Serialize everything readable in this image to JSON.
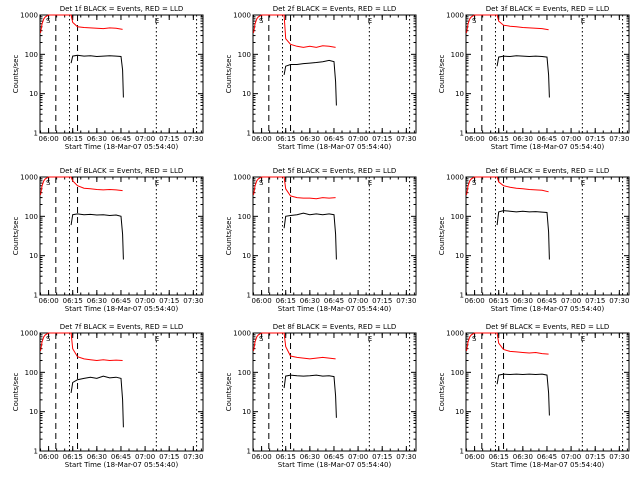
{
  "chart_data": [
    {
      "type": "line",
      "title": "Det 1f BLACK = Events, RED = LLD",
      "xlabel": "Start Time (18-Mar-07 05:54:40)",
      "ylabel": "Counts/sec",
      "x_ticks": [
        "06:00",
        "06:15",
        "06:30",
        "06:45",
        "07:00",
        "07:15",
        "07:30"
      ],
      "y_ticks": [
        "1",
        "10",
        "100",
        "1000"
      ],
      "yscale": "log",
      "xlim": [
        "05:54:40",
        "07:36:00"
      ],
      "ylim": [
        1,
        1000
      ],
      "saa_flags": [
        "S",
        "E"
      ],
      "series": [
        {
          "name": "LLD",
          "color": "#ff0000",
          "x": [
            "05:55",
            "05:56",
            "05:57",
            "05:58",
            "05:59",
            "06:00",
            "06:14",
            "06:15",
            "06:18",
            "06:22",
            "06:26",
            "06:30",
            "06:34",
            "06:38",
            "06:42",
            "06:46"
          ],
          "y": [
            350,
            600,
            800,
            900,
            950,
            1000,
            1000,
            650,
            500,
            480,
            470,
            460,
            450,
            470,
            460,
            430
          ]
        },
        {
          "name": "Events",
          "color": "#000000",
          "x": [
            "06:14",
            "06:15",
            "06:18",
            "06:22",
            "06:26",
            "06:30",
            "06:34",
            "06:38",
            "06:42",
            "06:45",
            "06:46",
            "06:46.5"
          ],
          "y": [
            60,
            90,
            95,
            90,
            92,
            88,
            90,
            92,
            90,
            88,
            40,
            8
          ]
        }
      ]
    },
    {
      "type": "line",
      "title": "Det 2f BLACK = Events, RED = LLD",
      "xlabel": "Start Time (18-Mar-07 05:54:40)",
      "ylabel": "Counts/sec",
      "x_ticks": [
        "06:00",
        "06:15",
        "06:30",
        "06:45",
        "07:00",
        "07:15",
        "07:30"
      ],
      "y_ticks": [
        "1",
        "10",
        "100",
        "1000"
      ],
      "yscale": "log",
      "xlim": [
        "05:54:40",
        "07:36:00"
      ],
      "ylim": [
        1,
        1000
      ],
      "saa_flags": [
        "S",
        "E"
      ],
      "series": [
        {
          "name": "LLD",
          "color": "#ff0000",
          "x": [
            "05:55",
            "05:56",
            "05:57",
            "05:58",
            "05:59",
            "06:00",
            "06:14",
            "06:15",
            "06:18",
            "06:22",
            "06:26",
            "06:30",
            "06:34",
            "06:38",
            "06:42",
            "06:46"
          ],
          "y": [
            350,
            600,
            800,
            900,
            950,
            1000,
            1000,
            250,
            180,
            160,
            150,
            160,
            150,
            165,
            160,
            150
          ]
        },
        {
          "name": "Events",
          "color": "#000000",
          "x": [
            "06:14",
            "06:15",
            "06:18",
            "06:22",
            "06:26",
            "06:30",
            "06:34",
            "06:38",
            "06:42",
            "06:45",
            "06:46",
            "06:46.5"
          ],
          "y": [
            30,
            50,
            55,
            55,
            58,
            60,
            62,
            65,
            70,
            65,
            20,
            5
          ]
        }
      ]
    },
    {
      "type": "line",
      "title": "Det 3f BLACK = Events, RED = LLD",
      "xlabel": "Start Time (18-Mar-07 05:54:40)",
      "ylabel": "Counts/sec",
      "x_ticks": [
        "06:00",
        "06:15",
        "06:30",
        "06:45",
        "07:00",
        "07:15",
        "07:30"
      ],
      "y_ticks": [
        "1",
        "10",
        "100",
        "1000"
      ],
      "yscale": "log",
      "xlim": [
        "05:54:40",
        "07:36:00"
      ],
      "ylim": [
        1,
        1000
      ],
      "saa_flags": [
        "S",
        "E"
      ],
      "series": [
        {
          "name": "LLD",
          "color": "#ff0000",
          "x": [
            "05:55",
            "05:56",
            "05:57",
            "05:58",
            "05:59",
            "06:00",
            "06:14",
            "06:15",
            "06:18",
            "06:22",
            "06:26",
            "06:30",
            "06:34",
            "06:38",
            "06:42",
            "06:46"
          ],
          "y": [
            350,
            600,
            800,
            900,
            950,
            1000,
            1000,
            700,
            550,
            520,
            500,
            480,
            470,
            460,
            450,
            420
          ]
        },
        {
          "name": "Events",
          "color": "#000000",
          "x": [
            "06:14",
            "06:15",
            "06:18",
            "06:22",
            "06:26",
            "06:30",
            "06:34",
            "06:38",
            "06:42",
            "06:45",
            "06:46",
            "06:46.5"
          ],
          "y": [
            50,
            85,
            90,
            88,
            92,
            90,
            88,
            90,
            88,
            85,
            30,
            8
          ]
        }
      ]
    },
    {
      "type": "line",
      "title": "Det 4f BLACK = Events, RED = LLD",
      "xlabel": "Start Time (18-Mar-07 05:54:40)",
      "ylabel": "Counts/sec",
      "x_ticks": [
        "06:00",
        "06:15",
        "06:30",
        "06:45",
        "07:00",
        "07:15",
        "07:30"
      ],
      "y_ticks": [
        "1",
        "10",
        "100",
        "1000"
      ],
      "yscale": "log",
      "xlim": [
        "05:54:40",
        "07:36:00"
      ],
      "ylim": [
        1,
        1000
      ],
      "saa_flags": [
        "S",
        "E"
      ],
      "series": [
        {
          "name": "LLD",
          "color": "#ff0000",
          "x": [
            "05:55",
            "05:56",
            "05:57",
            "05:58",
            "05:59",
            "06:00",
            "06:14",
            "06:15",
            "06:18",
            "06:22",
            "06:26",
            "06:30",
            "06:34",
            "06:38",
            "06:42",
            "06:46"
          ],
          "y": [
            350,
            600,
            800,
            900,
            950,
            1000,
            1000,
            800,
            600,
            520,
            500,
            480,
            470,
            480,
            470,
            450
          ]
        },
        {
          "name": "Events",
          "color": "#000000",
          "x": [
            "06:14",
            "06:15",
            "06:18",
            "06:22",
            "06:26",
            "06:30",
            "06:34",
            "06:38",
            "06:42",
            "06:45",
            "06:46",
            "06:46.5"
          ],
          "y": [
            60,
            110,
            115,
            110,
            112,
            108,
            110,
            105,
            108,
            100,
            35,
            8
          ]
        }
      ]
    },
    {
      "type": "line",
      "title": "Det 5f BLACK = Events, RED = LLD",
      "xlabel": "Start Time (18-Mar-07 05:54:40)",
      "ylabel": "Counts/sec",
      "x_ticks": [
        "06:00",
        "06:15",
        "06:30",
        "06:45",
        "07:00",
        "07:15",
        "07:30"
      ],
      "y_ticks": [
        "1",
        "10",
        "100",
        "1000"
      ],
      "yscale": "log",
      "xlim": [
        "05:54:40",
        "07:36:00"
      ],
      "ylim": [
        1,
        1000
      ],
      "saa_flags": [
        "S",
        "E"
      ],
      "series": [
        {
          "name": "LLD",
          "color": "#ff0000",
          "x": [
            "05:55",
            "05:56",
            "05:57",
            "05:58",
            "05:59",
            "06:00",
            "06:14",
            "06:15",
            "06:18",
            "06:22",
            "06:26",
            "06:30",
            "06:34",
            "06:38",
            "06:42",
            "06:46"
          ],
          "y": [
            350,
            600,
            800,
            900,
            950,
            1000,
            1000,
            500,
            330,
            300,
            290,
            290,
            280,
            300,
            290,
            300
          ]
        },
        {
          "name": "Events",
          "color": "#000000",
          "x": [
            "06:14",
            "06:15",
            "06:18",
            "06:22",
            "06:26",
            "06:30",
            "06:34",
            "06:38",
            "06:42",
            "06:45",
            "06:46",
            "06:46.5"
          ],
          "y": [
            50,
            100,
            105,
            110,
            120,
            110,
            115,
            110,
            115,
            110,
            35,
            8
          ]
        }
      ]
    },
    {
      "type": "line",
      "title": "Det 6f BLACK = Events, RED = LLD",
      "xlabel": "Start Time (18-Mar-07 05:54:40)",
      "ylabel": "Counts/sec",
      "x_ticks": [
        "06:00",
        "06:15",
        "06:30",
        "06:45",
        "07:00",
        "07:15",
        "07:30"
      ],
      "y_ticks": [
        "1",
        "10",
        "100",
        "1000"
      ],
      "yscale": "log",
      "xlim": [
        "05:54:40",
        "07:36:00"
      ],
      "ylim": [
        1,
        1000
      ],
      "saa_flags": [
        "S",
        "E"
      ],
      "series": [
        {
          "name": "LLD",
          "color": "#ff0000",
          "x": [
            "05:55",
            "05:56",
            "05:57",
            "05:58",
            "05:59",
            "06:00",
            "06:14",
            "06:15",
            "06:18",
            "06:22",
            "06:26",
            "06:30",
            "06:34",
            "06:38",
            "06:42",
            "06:46"
          ],
          "y": [
            350,
            600,
            800,
            900,
            950,
            1000,
            1000,
            750,
            600,
            550,
            520,
            500,
            480,
            470,
            460,
            420
          ]
        },
        {
          "name": "Events",
          "color": "#000000",
          "x": [
            "06:14",
            "06:15",
            "06:18",
            "06:22",
            "06:26",
            "06:30",
            "06:34",
            "06:38",
            "06:42",
            "06:45",
            "06:46",
            "06:46.5"
          ],
          "y": [
            60,
            130,
            140,
            135,
            130,
            135,
            130,
            132,
            128,
            125,
            40,
            8
          ]
        }
      ]
    },
    {
      "type": "line",
      "title": "Det 7f BLACK = Events, RED = LLD",
      "xlabel": "Start Time (18-Mar-07 05:54:40)",
      "ylabel": "Counts/sec",
      "x_ticks": [
        "06:00",
        "06:15",
        "06:30",
        "06:45",
        "07:00",
        "07:15",
        "07:30"
      ],
      "y_ticks": [
        "1",
        "10",
        "100",
        "1000"
      ],
      "yscale": "log",
      "xlim": [
        "05:54:40",
        "07:36:00"
      ],
      "ylim": [
        1,
        1000
      ],
      "saa_flags": [
        "S",
        "E"
      ],
      "series": [
        {
          "name": "LLD",
          "color": "#ff0000",
          "x": [
            "05:55",
            "05:56",
            "05:57",
            "05:58",
            "05:59",
            "06:00",
            "06:14",
            "06:15",
            "06:18",
            "06:22",
            "06:26",
            "06:30",
            "06:34",
            "06:38",
            "06:42",
            "06:46"
          ],
          "y": [
            350,
            600,
            800,
            900,
            950,
            1000,
            1000,
            400,
            250,
            220,
            210,
            200,
            210,
            200,
            205,
            200
          ]
        },
        {
          "name": "Events",
          "color": "#000000",
          "x": [
            "06:14",
            "06:15",
            "06:18",
            "06:22",
            "06:26",
            "06:30",
            "06:34",
            "06:38",
            "06:42",
            "06:45",
            "06:46",
            "06:46.5"
          ],
          "y": [
            30,
            55,
            65,
            70,
            75,
            70,
            80,
            72,
            75,
            70,
            20,
            4
          ]
        }
      ]
    },
    {
      "type": "line",
      "title": "Det 8f BLACK = Events, RED = LLD",
      "xlabel": "Start Time (18-Mar-07 05:54:40)",
      "ylabel": "Counts/sec",
      "x_ticks": [
        "06:00",
        "06:15",
        "06:30",
        "06:45",
        "07:00",
        "07:15",
        "07:30"
      ],
      "y_ticks": [
        "1",
        "10",
        "100",
        "1000"
      ],
      "yscale": "log",
      "xlim": [
        "05:54:40",
        "07:36:00"
      ],
      "ylim": [
        1,
        1000
      ],
      "saa_flags": [
        "S",
        "E"
      ],
      "series": [
        {
          "name": "LLD",
          "color": "#ff0000",
          "x": [
            "05:55",
            "05:56",
            "05:57",
            "05:58",
            "05:59",
            "06:00",
            "06:14",
            "06:15",
            "06:18",
            "06:22",
            "06:26",
            "06:30",
            "06:34",
            "06:38",
            "06:42",
            "06:46"
          ],
          "y": [
            350,
            600,
            800,
            900,
            950,
            1000,
            1000,
            450,
            260,
            240,
            230,
            220,
            230,
            240,
            230,
            220
          ]
        },
        {
          "name": "Events",
          "color": "#000000",
          "x": [
            "06:14",
            "06:15",
            "06:18",
            "06:22",
            "06:26",
            "06:30",
            "06:34",
            "06:38",
            "06:42",
            "06:45",
            "06:46",
            "06:46.5"
          ],
          "y": [
            40,
            80,
            85,
            82,
            80,
            82,
            85,
            80,
            82,
            78,
            25,
            7
          ]
        }
      ]
    },
    {
      "type": "line",
      "title": "Det 9f BLACK = Events, RED = LLD",
      "xlabel": "Start Time (18-Mar-07 05:54:40)",
      "ylabel": "Counts/sec",
      "x_ticks": [
        "06:00",
        "06:15",
        "06:30",
        "06:45",
        "07:00",
        "07:15",
        "07:30"
      ],
      "y_ticks": [
        "1",
        "10",
        "100",
        "1000"
      ],
      "yscale": "log",
      "xlim": [
        "05:54:40",
        "07:36:00"
      ],
      "ylim": [
        1,
        1000
      ],
      "saa_flags": [
        "S",
        "E"
      ],
      "series": [
        {
          "name": "LLD",
          "color": "#ff0000",
          "x": [
            "05:55",
            "05:56",
            "05:57",
            "05:58",
            "05:59",
            "06:00",
            "06:14",
            "06:15",
            "06:18",
            "06:22",
            "06:26",
            "06:30",
            "06:34",
            "06:38",
            "06:42",
            "06:46"
          ],
          "y": [
            350,
            600,
            800,
            900,
            950,
            1000,
            1000,
            550,
            380,
            340,
            330,
            320,
            310,
            320,
            300,
            290
          ]
        },
        {
          "name": "Events",
          "color": "#000000",
          "x": [
            "06:14",
            "06:15",
            "06:18",
            "06:22",
            "06:26",
            "06:30",
            "06:34",
            "06:38",
            "06:42",
            "06:45",
            "06:46",
            "06:46.5"
          ],
          "y": [
            50,
            85,
            90,
            88,
            90,
            88,
            90,
            88,
            90,
            85,
            30,
            8
          ]
        }
      ]
    }
  ]
}
